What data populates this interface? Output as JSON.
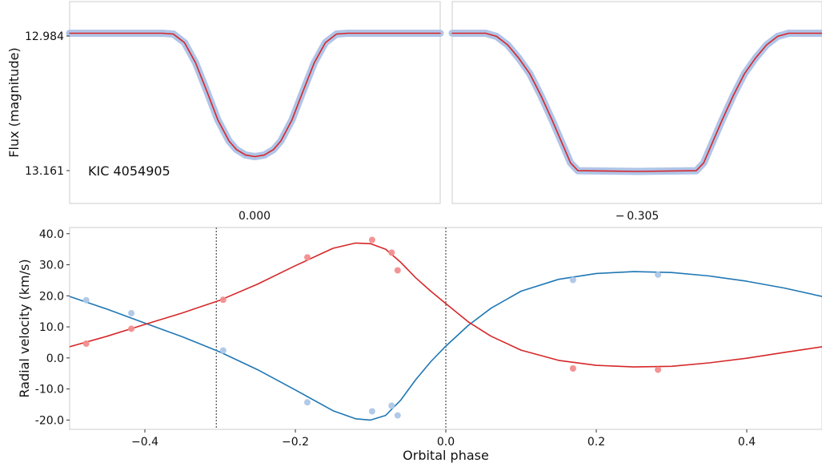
{
  "chart_data": [
    {
      "type": "line",
      "panel": "primary-eclipse",
      "title": "",
      "xlabel": "0.000",
      "ylabel": "Flux (magnitude)",
      "annotation": "KIC 4054905",
      "ytick_labels": [
        "12.984",
        "13.161"
      ],
      "yticks": [
        12.984,
        13.161
      ],
      "ylim": [
        12.9435,
        13.202
      ],
      "x": [
        -1.0,
        -0.5,
        -0.44,
        -0.38,
        -0.32,
        -0.26,
        -0.2,
        -0.14,
        -0.1,
        -0.05,
        0.0,
        0.05,
        0.1,
        0.14,
        0.2,
        0.26,
        0.32,
        0.38,
        0.44,
        0.5,
        1.0
      ],
      "series": [
        {
          "name": "",
          "color": "#b0c4e8",
          "role": "observed",
          "values": [
            12.984,
            12.984,
            12.985,
            12.996,
            13.022,
            13.058,
            13.095,
            13.122,
            13.133,
            13.14,
            13.142,
            13.14,
            13.133,
            13.122,
            13.095,
            13.058,
            13.022,
            12.996,
            12.985,
            12.984,
            12.984
          ]
        },
        {
          "name": "",
          "color": "#d62728",
          "role": "model",
          "values": [
            12.984,
            12.984,
            12.985,
            12.996,
            13.022,
            13.058,
            13.095,
            13.122,
            13.133,
            13.14,
            13.142,
            13.14,
            13.133,
            13.122,
            13.095,
            13.058,
            13.022,
            12.996,
            12.985,
            12.984,
            12.984
          ]
        }
      ]
    },
    {
      "type": "line",
      "panel": "secondary-eclipse",
      "title": "",
      "xlabel": "− 0.305",
      "ylabel": "",
      "ylim": [
        12.9435,
        13.202
      ],
      "x": [
        -1.0,
        -0.82,
        -0.76,
        -0.7,
        -0.64,
        -0.58,
        -0.52,
        -0.46,
        -0.4,
        -0.36,
        -0.32,
        0.0,
        0.32,
        0.36,
        0.4,
        0.46,
        0.52,
        0.58,
        0.64,
        0.7,
        0.76,
        0.82,
        1.0
      ],
      "series": [
        {
          "name": "",
          "color": "#b0c4e8",
          "role": "observed",
          "values": [
            12.984,
            12.984,
            12.988,
            12.999,
            13.016,
            13.036,
            13.064,
            13.095,
            13.128,
            13.15,
            13.16,
            13.161,
            13.16,
            13.15,
            13.128,
            13.095,
            13.064,
            13.036,
            13.016,
            12.999,
            12.988,
            12.984,
            12.984
          ]
        },
        {
          "name": "",
          "color": "#d62728",
          "role": "model",
          "values": [
            12.984,
            12.984,
            12.988,
            12.999,
            13.016,
            13.036,
            13.064,
            13.095,
            13.128,
            13.15,
            13.16,
            13.161,
            13.16,
            13.15,
            13.128,
            13.095,
            13.064,
            13.036,
            13.016,
            12.999,
            12.988,
            12.984,
            12.984
          ]
        }
      ]
    },
    {
      "type": "scatter",
      "panel": "radial-velocity",
      "title": "",
      "xlabel": "Orbital phase",
      "ylabel": "Radial velocity (km/s)",
      "xlim": [
        -0.5,
        0.5
      ],
      "ylim": [
        -23.0,
        42.0
      ],
      "xticks": [
        -0.4,
        -0.2,
        0.0,
        0.2,
        0.4
      ],
      "xtick_labels": [
        "−0.4",
        "−0.2",
        "0.0",
        "0.2",
        "0.4"
      ],
      "yticks": [
        40,
        30,
        20,
        10,
        0,
        -10,
        -20
      ],
      "ytick_labels": [
        "40.0",
        "30.0",
        "20.0",
        "10.0",
        "0.0",
        "-10.0",
        "-20.0"
      ],
      "vlines": [
        -0.305,
        0.0
      ],
      "grid": false,
      "series": [
        {
          "name": "",
          "color": "#1f77b4",
          "point_color": "#aec7e8",
          "role": "blue",
          "points": [
            {
              "x": -0.478,
              "y": 18.6
            },
            {
              "x": -0.418,
              "y": 14.4
            },
            {
              "x": -0.296,
              "y": 2.4
            },
            {
              "x": -0.184,
              "y": -14.3
            },
            {
              "x": -0.098,
              "y": -17.2
            },
            {
              "x": -0.072,
              "y": -15.4
            },
            {
              "x": -0.064,
              "y": -18.5
            },
            {
              "x": 0.169,
              "y": 25.1
            },
            {
              "x": 0.282,
              "y": 26.8
            }
          ],
          "curve": {
            "x": [
              -0.5,
              -0.45,
              -0.4,
              -0.35,
              -0.3,
              -0.25,
              -0.2,
              -0.15,
              -0.12,
              -0.1,
              -0.08,
              -0.06,
              -0.04,
              -0.02,
              0.0,
              0.03,
              0.06,
              0.1,
              0.15,
              0.2,
              0.25,
              0.3,
              0.35,
              0.4,
              0.45,
              0.5
            ],
            "y": [
              19.8,
              15.7,
              11.2,
              6.8,
              1.9,
              -3.8,
              -10.3,
              -17.0,
              -19.6,
              -20.0,
              -18.5,
              -13.6,
              -7.0,
              -1.2,
              3.8,
              10.5,
              16.0,
              21.5,
              25.3,
              27.2,
              27.8,
              27.5,
              26.4,
              24.7,
              22.5,
              19.8
            ]
          }
        },
        {
          "name": "",
          "color": "#d62728",
          "point_color": "#f28e8e",
          "role": "red",
          "points": [
            {
              "x": -0.478,
              "y": 4.6
            },
            {
              "x": -0.418,
              "y": 9.4
            },
            {
              "x": -0.296,
              "y": 18.7
            },
            {
              "x": -0.184,
              "y": 32.4
            },
            {
              "x": -0.098,
              "y": 38.0
            },
            {
              "x": -0.072,
              "y": 33.9
            },
            {
              "x": -0.064,
              "y": 28.2
            },
            {
              "x": 0.169,
              "y": -3.4
            },
            {
              "x": 0.282,
              "y": -3.8
            }
          ],
          "curve": {
            "x": [
              -0.5,
              -0.45,
              -0.4,
              -0.35,
              -0.3,
              -0.25,
              -0.2,
              -0.15,
              -0.12,
              -0.1,
              -0.08,
              -0.06,
              -0.04,
              -0.02,
              0.0,
              0.03,
              0.06,
              0.1,
              0.15,
              0.2,
              0.25,
              0.3,
              0.35,
              0.4,
              0.45,
              0.5
            ],
            "y": [
              3.6,
              7.0,
              10.8,
              14.5,
              18.6,
              23.8,
              29.7,
              35.3,
              37.0,
              36.8,
              35.0,
              30.8,
              25.8,
              21.5,
              17.5,
              11.6,
              7.0,
              2.5,
              -0.8,
              -2.4,
              -2.9,
              -2.7,
              -1.6,
              -0.1,
              1.8,
              3.6
            ]
          }
        }
      ]
    }
  ]
}
